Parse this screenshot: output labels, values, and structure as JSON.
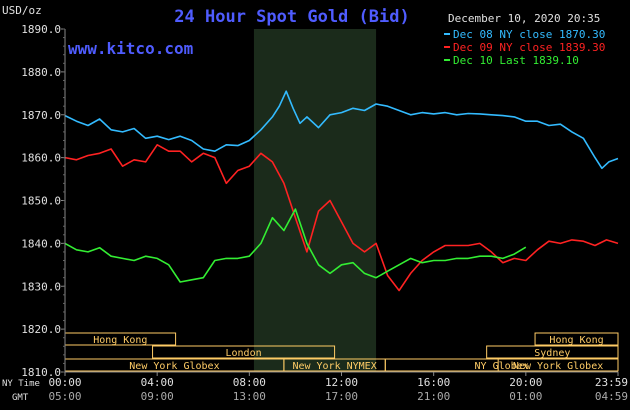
{
  "chart_data": {
    "type": "line",
    "title": "24 Hour Spot Gold (Bid)",
    "watermark": "www.kitco.com",
    "date": "December 10, 2020 20:35",
    "ylabel": "USD/oz",
    "ylim": [
      1810,
      1890
    ],
    "yticks": [
      1810,
      1820,
      1830,
      1840,
      1850,
      1860,
      1870,
      1880,
      1890
    ],
    "ytick_labels": [
      "1810.0",
      "1820.0",
      "1830.0",
      "1840.0",
      "1850.0",
      "1860.0",
      "1870.0",
      "1880.0",
      "1890.0"
    ],
    "xlim": [
      0,
      24
    ],
    "xticks": [
      0,
      4,
      8,
      12,
      16,
      20,
      24
    ],
    "ny_time_label": "NY Time",
    "gmt_label": "GMT",
    "ny_tick_labels": [
      "00:00",
      "04:00",
      "08:00",
      "12:00",
      "16:00",
      "20:00",
      "23:59"
    ],
    "gmt_tick_labels": [
      "05:00",
      "09:00",
      "13:00",
      "17:00",
      "21:00",
      "01:00",
      "04:59"
    ],
    "shaded_region": [
      8.2,
      13.5
    ],
    "grid": false,
    "legend_position": "top-right",
    "series": [
      {
        "name": "Dec 08 NY close 1870.30",
        "color": "#33bbff",
        "x": [
          0,
          0.5,
          1,
          1.5,
          2,
          2.5,
          3,
          3.5,
          4,
          4.5,
          5,
          5.5,
          6,
          6.5,
          7,
          7.5,
          8,
          8.5,
          9,
          9.3,
          9.6,
          9.9,
          10.2,
          10.5,
          11,
          11.5,
          12,
          12.5,
          13,
          13.5,
          14,
          14.5,
          15,
          15.5,
          16,
          16.5,
          17,
          17.5,
          18,
          18.5,
          19,
          19.5,
          20,
          20.5,
          21,
          21.5,
          22,
          22.5,
          23,
          23.3,
          23.6,
          24
        ],
        "y": [
          1869.8,
          1868.5,
          1867.5,
          1869,
          1866.5,
          1866,
          1866.8,
          1864.5,
          1865,
          1864.2,
          1865,
          1864,
          1862,
          1861.5,
          1863,
          1862.8,
          1864,
          1866.5,
          1869.5,
          1872,
          1875.5,
          1871.5,
          1868,
          1869.5,
          1867,
          1870,
          1870.5,
          1871.5,
          1871,
          1872.5,
          1872,
          1871,
          1870,
          1870.5,
          1870.2,
          1870.5,
          1870,
          1870.3,
          1870.2,
          1870,
          1869.8,
          1869.5,
          1868.5,
          1868.5,
          1867.5,
          1867.8,
          1866,
          1864.5,
          1860,
          1857.5,
          1859,
          1859.8
        ]
      },
      {
        "name": "Dec 09 NY close 1839.30",
        "color": "#ff2222",
        "x": [
          0,
          0.5,
          1,
          1.5,
          2,
          2.5,
          3,
          3.5,
          4,
          4.5,
          5,
          5.5,
          6,
          6.5,
          7,
          7.5,
          8,
          8.5,
          9,
          9.5,
          10,
          10.5,
          11,
          11.5,
          12,
          12.5,
          13,
          13.5,
          14,
          14.5,
          15,
          15.5,
          16,
          16.5,
          17,
          17.5,
          18,
          18.5,
          19,
          19.5,
          20,
          20.5,
          21,
          21.5,
          22,
          22.5,
          23,
          23.5,
          24
        ],
        "y": [
          1860,
          1859.5,
          1860.5,
          1861,
          1862,
          1858,
          1859.5,
          1859,
          1863,
          1861.5,
          1861.5,
          1859,
          1861,
          1860,
          1854,
          1857,
          1858,
          1861,
          1859,
          1854,
          1846,
          1838,
          1847.5,
          1850,
          1845,
          1840,
          1838,
          1840,
          1832.5,
          1829,
          1833,
          1836,
          1838,
          1839.5,
          1839.5,
          1839.5,
          1840,
          1838,
          1835.5,
          1836.5,
          1836,
          1838.5,
          1840.5,
          1840,
          1840.8,
          1840.5,
          1839.5,
          1840.8,
          1840
        ]
      },
      {
        "name": "Dec 10 Last 1839.10",
        "color": "#33ee33",
        "x": [
          0,
          0.5,
          1,
          1.5,
          2,
          2.5,
          3,
          3.5,
          4,
          4.5,
          5,
          5.5,
          6,
          6.5,
          7,
          7.5,
          8,
          8.5,
          9,
          9.5,
          10,
          10.5,
          11,
          11.5,
          12,
          12.5,
          13,
          13.5,
          14,
          14.5,
          15,
          15.5,
          16,
          16.5,
          17,
          17.5,
          18,
          18.5,
          19,
          19.5,
          20
        ],
        "y": [
          1840,
          1838.5,
          1838,
          1839,
          1837,
          1836.5,
          1836,
          1837,
          1836.5,
          1835,
          1831,
          1831.5,
          1832,
          1836,
          1836.5,
          1836.5,
          1837,
          1840,
          1846,
          1843,
          1848,
          1840,
          1835,
          1833,
          1835,
          1835.5,
          1833,
          1832,
          1833.5,
          1835,
          1836.5,
          1835.5,
          1836,
          1836,
          1836.5,
          1836.5,
          1837,
          1837,
          1836.5,
          1837.5,
          1839.1
        ]
      }
    ],
    "sessions": [
      {
        "label": "Hong Kong",
        "start": 0,
        "end": 4.8,
        "row": 0
      },
      {
        "label": "London",
        "start": 3.8,
        "end": 11.7,
        "row": 1
      },
      {
        "label": "New York Globex",
        "start": 0,
        "end": 9.5,
        "row": 2
      },
      {
        "label": "New York NYMEX",
        "start": 9.5,
        "end": 13.9,
        "row": 2
      },
      {
        "label": "NY Globex",
        "start": 13.9,
        "end": 24,
        "row": 2
      },
      {
        "label": "New York Globex",
        "start": 18.8,
        "end": 24,
        "row": 2
      },
      {
        "label": "Sydney",
        "start": 18.3,
        "end": 24,
        "row": 1
      },
      {
        "label": "Hong Kong",
        "start": 20.4,
        "end": 24,
        "row": 0
      }
    ]
  }
}
